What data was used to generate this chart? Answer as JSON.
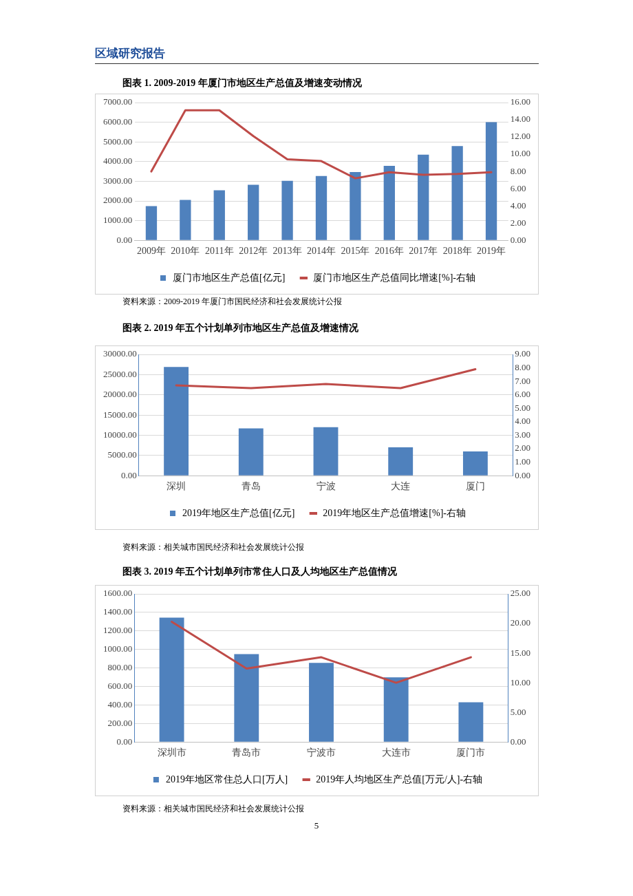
{
  "chart_data": [
    {
      "type": "bar",
      "title": "图表 1. 2009-2019 年厦门市地区生产总值及增速变动情况",
      "categories": [
        "2009年",
        "2010年",
        "2011年",
        "2012年",
        "2013年",
        "2014年",
        "2015年",
        "2016年",
        "2017年",
        "2018年",
        "2019年"
      ],
      "series": [
        {
          "name": "厦门市地区生产总值[亿元]",
          "color": "#4f81bd",
          "values": [
            1740,
            2050,
            2540,
            2820,
            3020,
            3270,
            3470,
            3780,
            4350,
            4790,
            6000
          ]
        },
        {
          "name": "厦门市地区生产总值同比增速[%]-右轴",
          "type": "line",
          "axis": "y2",
          "color": "#be4b48",
          "values": [
            8.0,
            15.1,
            15.1,
            12.1,
            9.4,
            9.2,
            7.2,
            7.9,
            7.6,
            7.7,
            7.9
          ]
        }
      ],
      "ylim": [
        0,
        7000
      ],
      "yticks": [
        {
          "value": 0,
          "label": "0.00"
        },
        {
          "value": 1000,
          "label": "1000.00"
        },
        {
          "value": 2000,
          "label": "2000.00"
        },
        {
          "value": 3000,
          "label": "3000.00"
        },
        {
          "value": 4000,
          "label": "4000.00"
        },
        {
          "value": 5000,
          "label": "5000.00"
        },
        {
          "value": 6000,
          "label": "6000.00"
        },
        {
          "value": 7000,
          "label": "7000.00"
        }
      ],
      "y2lim": [
        0,
        16
      ],
      "y2ticks": [
        {
          "value": 0,
          "label": "0.00"
        },
        {
          "value": 2,
          "label": "2.00"
        },
        {
          "value": 4,
          "label": "4.00"
        },
        {
          "value": 6,
          "label": "6.00"
        },
        {
          "value": 8,
          "label": "8.00"
        },
        {
          "value": 10,
          "label": "10.00"
        },
        {
          "value": 12,
          "label": "12.00"
        },
        {
          "value": 14,
          "label": "14.00"
        },
        {
          "value": 16,
          "label": "16.00"
        }
      ],
      "grid": "y",
      "legend": "bottom",
      "marker": "none",
      "line_style": "solid",
      "annotations": [
        "区域研究报告",
        "资料来源：2009-2019 年厦门市国民经济和社会发展统计公报"
      ]
    },
    {
      "type": "bar",
      "title": "图表 2. 2019 年五个计划单列市地区生产总值及增速情况",
      "categories": [
        "深圳",
        "青岛",
        "宁波",
        "大连",
        "厦门"
      ],
      "series": [
        {
          "name": "2019年地区生产总值[亿元]",
          "color": "#4f81bd",
          "values": [
            26900,
            11700,
            12000,
            7000,
            6000
          ]
        },
        {
          "name": "2019年地区生产总值增速[%]-右轴",
          "type": "line",
          "axis": "y2",
          "color": "#be4b48",
          "values": [
            6.7,
            6.5,
            6.8,
            6.5,
            7.9
          ]
        }
      ],
      "ylim": [
        0,
        30000
      ],
      "yticks": [
        {
          "value": 0,
          "label": "0.00"
        },
        {
          "value": 5000,
          "label": "5000.00"
        },
        {
          "value": 10000,
          "label": "10000.00"
        },
        {
          "value": 15000,
          "label": "15000.00"
        },
        {
          "value": 20000,
          "label": "20000.00"
        },
        {
          "value": 25000,
          "label": "25000.00"
        },
        {
          "value": 30000,
          "label": "30000.00"
        }
      ],
      "y2lim": [
        0,
        9
      ],
      "y2ticks": [
        {
          "value": 0,
          "label": "0.00"
        },
        {
          "value": 1,
          "label": "1.00"
        },
        {
          "value": 2,
          "label": "2.00"
        },
        {
          "value": 3,
          "label": "3.00"
        },
        {
          "value": 4,
          "label": "4.00"
        },
        {
          "value": 5,
          "label": "5.00"
        },
        {
          "value": 6,
          "label": "6.00"
        },
        {
          "value": 7,
          "label": "7.00"
        },
        {
          "value": 8,
          "label": "8.00"
        },
        {
          "value": 9,
          "label": "9.00"
        }
      ],
      "grid": "y",
      "legend": "bottom",
      "marker": "none",
      "line_style": "solid",
      "annotations": [
        "资料来源：相关城市国民经济和社会发展统计公报"
      ]
    },
    {
      "type": "bar",
      "title": "图表 3. 2019 年五个计划单列市常住人口及人均地区生产总值情况",
      "categories": [
        "深圳市",
        "青岛市",
        "宁波市",
        "大连市",
        "厦门市"
      ],
      "series": [
        {
          "name": "2019年地区常住总人口[万人]",
          "color": "#4f81bd",
          "values": [
            1344,
            950,
            854,
            699,
            429
          ]
        },
        {
          "name": "2019年人均地区生产总值[万元/人]-右轴",
          "type": "line",
          "axis": "y2",
          "color": "#be4b48",
          "values": [
            20.3,
            12.4,
            14.3,
            10.0,
            14.3
          ]
        }
      ],
      "ylim": [
        0,
        1600
      ],
      "yticks": [
        {
          "value": 0,
          "label": "0.00"
        },
        {
          "value": 200,
          "label": "200.00"
        },
        {
          "value": 400,
          "label": "400.00"
        },
        {
          "value": 600,
          "label": "600.00"
        },
        {
          "value": 800,
          "label": "800.00"
        },
        {
          "value": 1000,
          "label": "1000.00"
        },
        {
          "value": 1200,
          "label": "1200.00"
        },
        {
          "value": 1400,
          "label": "1400.00"
        },
        {
          "value": 1600,
          "label": "1600.00"
        }
      ],
      "y2lim": [
        0,
        25
      ],
      "y2ticks": [
        {
          "value": 0,
          "label": "0.00"
        },
        {
          "value": 5,
          "label": "5.00"
        },
        {
          "value": 10,
          "label": "10.00"
        },
        {
          "value": 15,
          "label": "15.00"
        },
        {
          "value": 20,
          "label": "20.00"
        },
        {
          "value": 25,
          "label": "25.00"
        }
      ],
      "grid": "y",
      "legend": "bottom",
      "marker": "none",
      "line_style": "solid",
      "annotations": [
        "资料来源：相关城市国民经济和社会发展统计公报",
        "5"
      ]
    }
  ]
}
